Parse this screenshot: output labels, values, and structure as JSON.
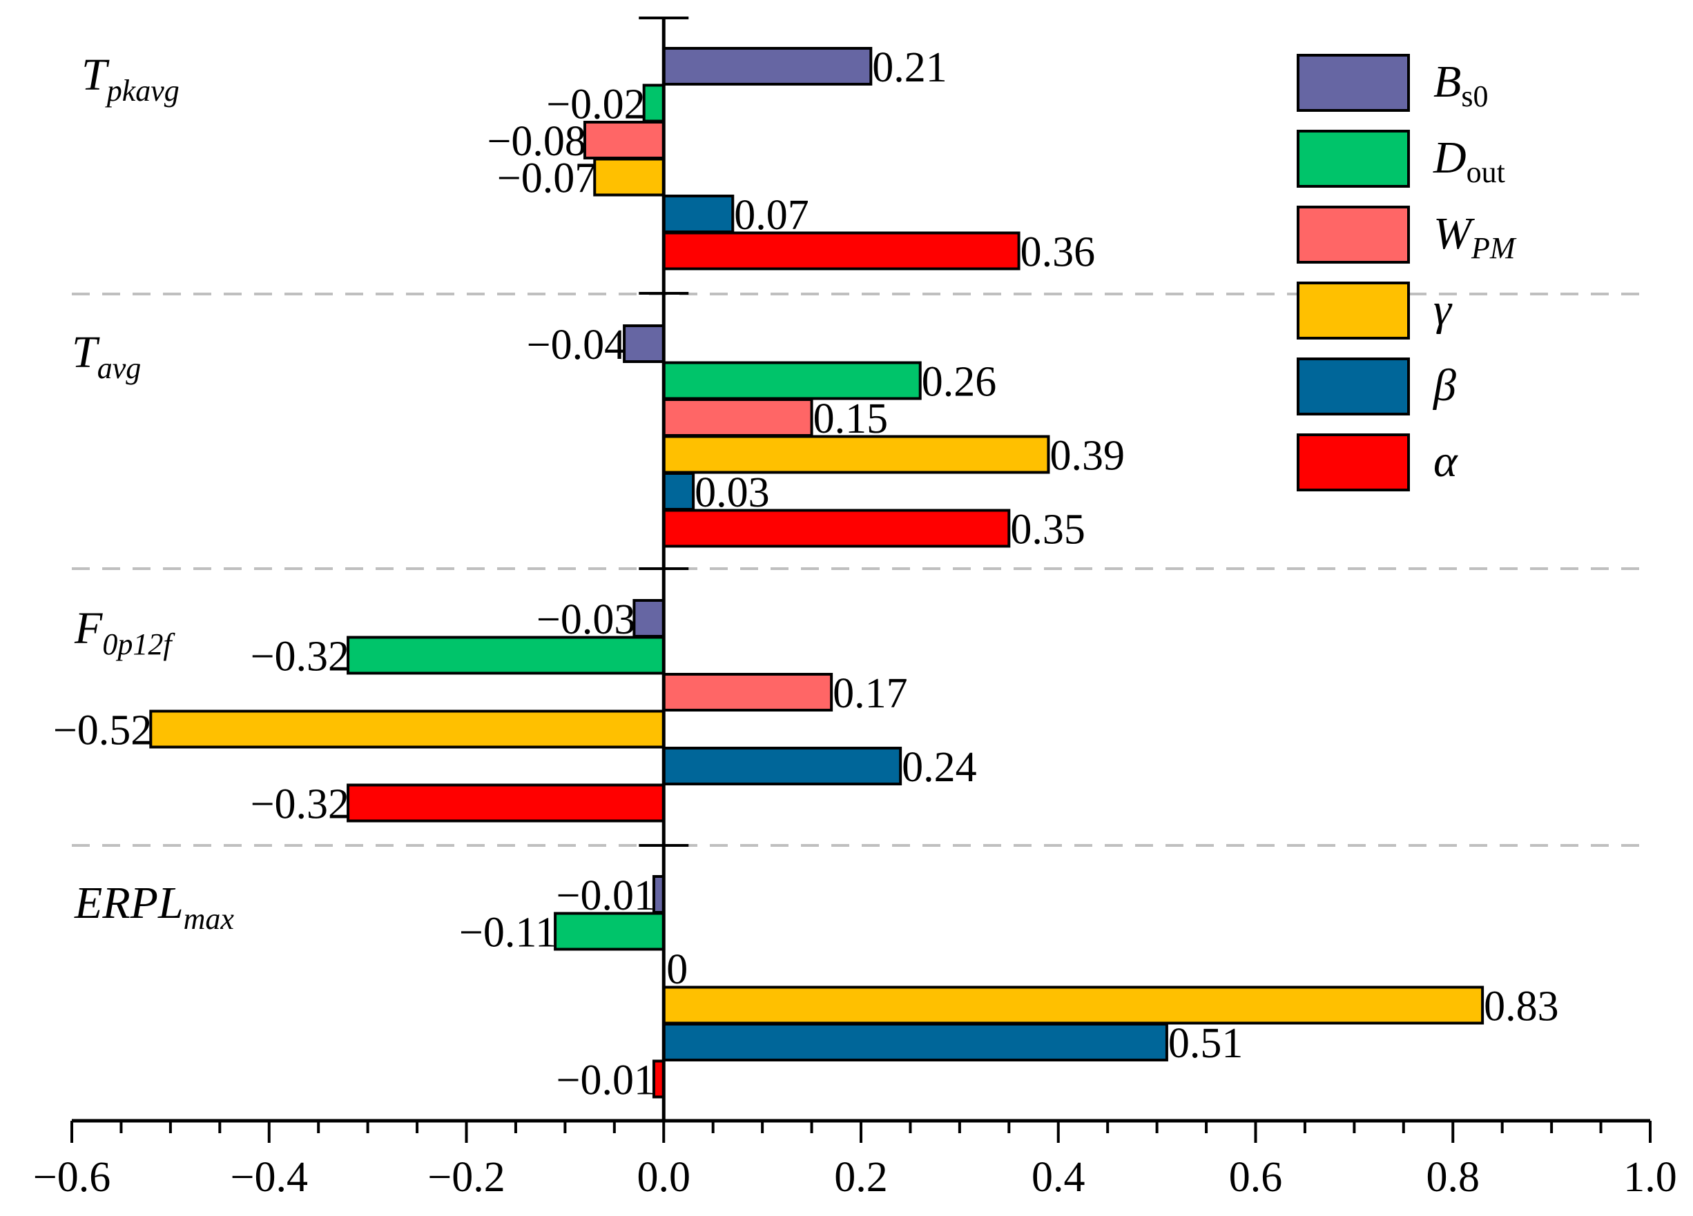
{
  "chart_data": {
    "type": "bar",
    "orientation": "horizontal",
    "xlim": [
      -0.6,
      1.0
    ],
    "x_ticks": [
      -0.6,
      -0.4,
      -0.2,
      0.0,
      0.2,
      0.4,
      0.6,
      0.8,
      1.0
    ],
    "x_tick_labels": [
      "−0.6",
      "−0.4",
      "−0.2",
      "0.0",
      "0.2",
      "0.4",
      "0.6",
      "0.8",
      "1.0"
    ],
    "groups": [
      {
        "name": "T",
        "sub": "pkavg"
      },
      {
        "name": "T",
        "sub": "avg"
      },
      {
        "name": "F",
        "sub": "0p12f"
      },
      {
        "name": "ERPL",
        "sub": "max"
      }
    ],
    "series": [
      {
        "name": "B",
        "sub": "s0",
        "sub_italic": false,
        "color": "#6666a3",
        "values": [
          0.21,
          -0.04,
          -0.03,
          -0.01
        ],
        "labels": [
          "0.21",
          "−0.04",
          "−0.03",
          "−0.01"
        ]
      },
      {
        "name": "D",
        "sub": "out",
        "sub_italic": false,
        "color": "#00c46a",
        "values": [
          -0.02,
          0.26,
          -0.32,
          -0.11
        ],
        "labels": [
          "−0.02",
          "0.26",
          "−0.32",
          "−0.11"
        ]
      },
      {
        "name": "W",
        "sub": "PM",
        "sub_italic": true,
        "color": "#ff6666",
        "values": [
          -0.08,
          0.15,
          0.17,
          0
        ],
        "labels": [
          "−0.08",
          "0.15",
          "0.17",
          "0"
        ]
      },
      {
        "name": "γ",
        "sub": "",
        "sub_italic": false,
        "color": "#ffc000",
        "values": [
          -0.07,
          0.39,
          -0.52,
          0.83
        ],
        "labels": [
          "−0.07",
          "0.39",
          "−0.52",
          "0.83"
        ]
      },
      {
        "name": "β",
        "sub": "",
        "sub_italic": false,
        "color": "#006699",
        "values": [
          0.07,
          0.03,
          0.24,
          0.51
        ],
        "labels": [
          "0.07",
          "0.03",
          "0.24",
          "0.51"
        ]
      },
      {
        "name": "α",
        "sub": "",
        "sub_italic": false,
        "color": "#ff0000",
        "values": [
          0.36,
          0.35,
          -0.32,
          -0.01
        ],
        "labels": [
          "0.36",
          "0.35",
          "−0.32",
          "−0.01"
        ]
      }
    ],
    "legend_position": "top-right",
    "grid": false
  }
}
